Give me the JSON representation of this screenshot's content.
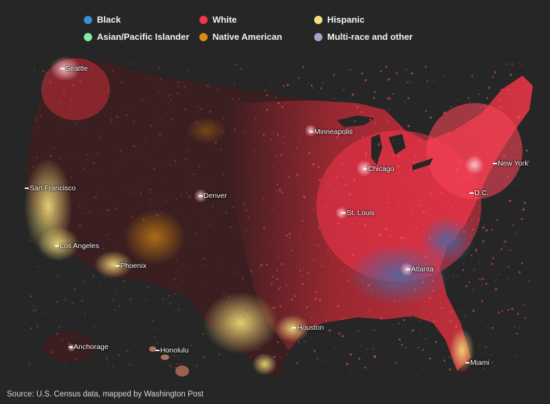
{
  "legend": [
    {
      "label": "Black",
      "color": "#3b8fd0"
    },
    {
      "label": "White",
      "color": "#f2354a"
    },
    {
      "label": "Hispanic",
      "color": "#f7e07a"
    },
    {
      "label": "Asian/Pacific Islander",
      "color": "#7ef0a2"
    },
    {
      "label": "Native American",
      "color": "#e08a12"
    },
    {
      "label": "Multi-race and other",
      "color": "#a8a0c8"
    }
  ],
  "cities": [
    {
      "name": "Seattle"
    },
    {
      "name": "Minneapolis"
    },
    {
      "name": "Chicago"
    },
    {
      "name": "New York"
    },
    {
      "name": "San Francisco"
    },
    {
      "name": "Denver"
    },
    {
      "name": "D.C."
    },
    {
      "name": "St. Louis"
    },
    {
      "name": "Los Angeles"
    },
    {
      "name": "Phoenix"
    },
    {
      "name": "Atlanta"
    },
    {
      "name": "Houston"
    },
    {
      "name": "Anchorage"
    },
    {
      "name": "Honolulu"
    },
    {
      "name": "Miami"
    }
  ],
  "source": "Source: U.S. Census data, mapped by Washington Post"
}
